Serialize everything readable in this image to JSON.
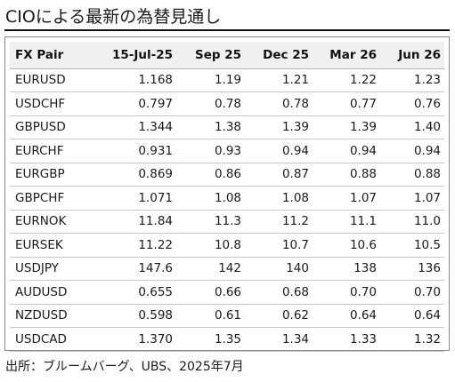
{
  "title": "CIOによる最新の為替見通し",
  "table": {
    "headers": [
      "FX Pair",
      "15-Jul-25",
      "Sep 25",
      "Dec 25",
      "Mar 26",
      "Jun 26"
    ],
    "rows": [
      [
        "EURUSD",
        "1.168",
        "1.19",
        "1.21",
        "1.22",
        "1.23"
      ],
      [
        "USDCHF",
        "0.797",
        "0.78",
        "0.78",
        "0.77",
        "0.76"
      ],
      [
        "GBPUSD",
        "1.344",
        "1.38",
        "1.39",
        "1.39",
        "1.40"
      ],
      [
        "EURCHF",
        "0.931",
        "0.93",
        "0.94",
        "0.94",
        "0.94"
      ],
      [
        "EURGBP",
        "0.869",
        "0.86",
        "0.87",
        "0.88",
        "0.88"
      ],
      [
        "GBPCHF",
        "1.071",
        "1.08",
        "1.08",
        "1.07",
        "1.07"
      ],
      [
        "EURNOK",
        "11.84",
        "11.3",
        "11.2",
        "11.1",
        "11.0"
      ],
      [
        "EURSEK",
        "11.22",
        "10.8",
        "10.7",
        "10.6",
        "10.5"
      ],
      [
        "USDJPY",
        "147.6",
        "142",
        "140",
        "138",
        "136"
      ],
      [
        "AUDUSD",
        "0.655",
        "0.66",
        "0.68",
        "0.70",
        "0.70"
      ],
      [
        "NZDUSD",
        "0.598",
        "0.61",
        "0.62",
        "0.64",
        "0.64"
      ],
      [
        "USDCAD",
        "1.370",
        "1.35",
        "1.34",
        "1.33",
        "1.32"
      ]
    ]
  },
  "footer": "出所：ブルームバーグ、UBS、2025年7月"
}
